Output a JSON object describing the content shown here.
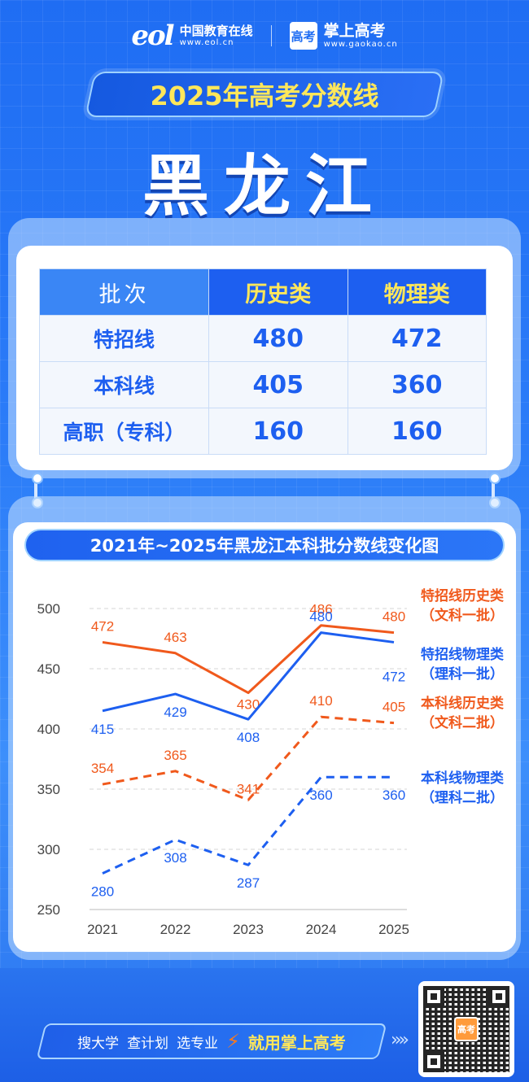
{
  "header": {
    "eol_mark": "eol",
    "eol_name": "中国教育在线",
    "eol_url": "www.eol.cn",
    "gk_mark": "高考",
    "gk_name": "掌上高考",
    "gk_url": "www.gaokao.cn"
  },
  "title": "2025年高考分数线",
  "province": "黑龙江",
  "table": {
    "headers": [
      "批次",
      "历史类",
      "物理类"
    ],
    "rows": [
      {
        "label": "特招线",
        "history": "480",
        "physics": "472"
      },
      {
        "label": "本科线",
        "history": "405",
        "physics": "360"
      },
      {
        "label": "高职（专科）",
        "history": "160",
        "physics": "160"
      }
    ]
  },
  "colors": {
    "blue": "#1d5ff0",
    "orange": "#f0591c",
    "yellow": "#ffe75a"
  },
  "chart_data": {
    "type": "line",
    "title": "2021年~2025年黑龙江本科批分数线变化图",
    "x": [
      "2021",
      "2022",
      "2023",
      "2024",
      "2025"
    ],
    "ylim": [
      250,
      500
    ],
    "yticks": [
      250,
      300,
      350,
      400,
      450,
      500
    ],
    "grid": true,
    "legend_placement": "right",
    "series": [
      {
        "name": "特招线历史类",
        "name2": "（文科一批）",
        "values": [
          472,
          463,
          430,
          486,
          480
        ],
        "color": "#f0591c",
        "dashed": false
      },
      {
        "name": "特招线物理类",
        "name2": "（理科一批）",
        "values": [
          415,
          429,
          408,
          480,
          472
        ],
        "color": "#1d5ff0",
        "dashed": false
      },
      {
        "name": "本科线历史类",
        "name2": "（文科二批）",
        "values": [
          354,
          365,
          341,
          410,
          405
        ],
        "color": "#f0591c",
        "dashed": true
      },
      {
        "name": "本科线物理类",
        "name2": "（理科二批）",
        "values": [
          280,
          308,
          287,
          360,
          360
        ],
        "color": "#1d5ff0",
        "dashed": true
      }
    ]
  },
  "footer": {
    "slogan_items": [
      "搜大学",
      "查计划",
      "选专业"
    ],
    "cta": "就用掌上高考",
    "qr_logo": "高考"
  }
}
